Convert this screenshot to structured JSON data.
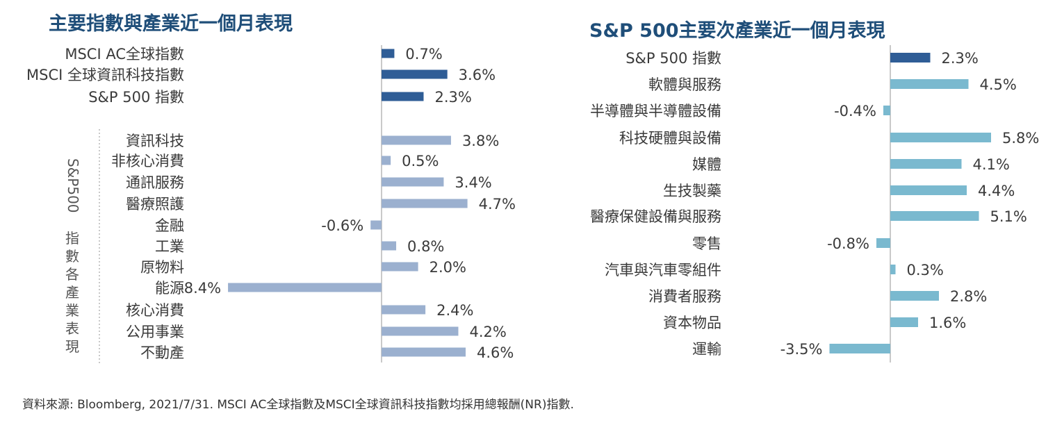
{
  "colors": {
    "main_bar": "#2f5d96",
    "sector_bar": "#9bb0cf",
    "right_bar": "#7ab9cf",
    "title": "#1f4e79",
    "axis": "#c9c9c9"
  },
  "chart_data": [
    {
      "type": "bar",
      "orientation": "horizontal",
      "title": "主要指數與產業近一個月表現",
      "group_label": "S&P500 指數各產業表現",
      "unit": "%",
      "categories": [
        "MSCI AC全球指數",
        "MSCI 全球資訊科技指數",
        "S&P 500 指數",
        "資訊科技",
        "非核心消費",
        "通訊服務",
        "醫療照護",
        "金融",
        "工業",
        "原物料",
        "能源",
        "核心消費",
        "公用事業",
        "不動產"
      ],
      "values": [
        0.7,
        3.6,
        2.3,
        3.8,
        0.5,
        3.4,
        4.7,
        -0.6,
        0.8,
        2.0,
        -8.4,
        2.4,
        4.2,
        4.6
      ],
      "labels": [
        "0.7%",
        "3.6%",
        "2.3%",
        "3.8%",
        "0.5%",
        "3.4%",
        "4.7%",
        "-0.6%",
        "0.8%",
        "2.0%",
        "-8.4%",
        "2.4%",
        "4.2%",
        "4.6%"
      ],
      "series_group": [
        "index",
        "index",
        "index",
        "sector",
        "sector",
        "sector",
        "sector",
        "sector",
        "sector",
        "sector",
        "sector",
        "sector",
        "sector",
        "sector"
      ],
      "xlabel": "",
      "ylabel": ""
    },
    {
      "type": "bar",
      "orientation": "horizontal",
      "title": "S&P 500主要次產業近一個月表現",
      "unit": "%",
      "categories": [
        "S&P 500 指數",
        "軟體與服務",
        "半導體與半導體設備",
        "科技硬體與設備",
        "媒體",
        "生技製藥",
        "醫療保健設備與服務",
        "零售",
        "汽車與汽車零組件",
        "消費者服務",
        "資本物品",
        "運輸"
      ],
      "values": [
        2.3,
        4.5,
        -0.4,
        5.8,
        4.1,
        4.4,
        5.1,
        -0.8,
        0.3,
        2.8,
        1.6,
        -3.5
      ],
      "labels": [
        "2.3%",
        "4.5%",
        "-0.4%",
        "5.8%",
        "4.1%",
        "4.4%",
        "5.1%",
        "-0.8%",
        "0.3%",
        "2.8%",
        "1.6%",
        "-3.5%"
      ],
      "series_group": [
        "index",
        "sub",
        "sub",
        "sub",
        "sub",
        "sub",
        "sub",
        "sub",
        "sub",
        "sub",
        "sub",
        "sub"
      ],
      "xlabel": "",
      "ylabel": ""
    }
  ],
  "source_note": "資料來源: Bloomberg, 2021/7/31. MSCI AC全球指數及MSCI全球資訊科技指數均採用總報酬(NR)指數."
}
